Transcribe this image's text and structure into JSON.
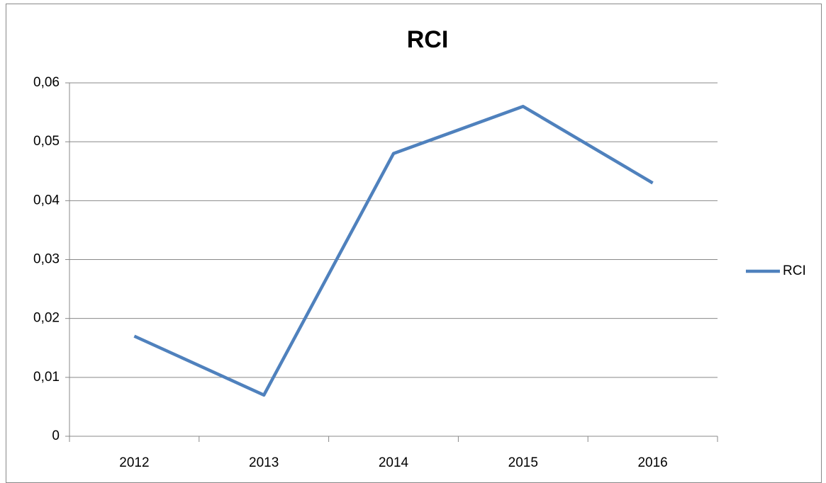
{
  "chart_data": {
    "type": "line",
    "title": "RCI",
    "categories": [
      "2012",
      "2013",
      "2014",
      "2015",
      "2016"
    ],
    "series": [
      {
        "name": "RCI",
        "color": "#4f81bd",
        "values": [
          0.017,
          0.007,
          0.048,
          0.056,
          0.043
        ]
      }
    ],
    "ylim": [
      0,
      0.06
    ],
    "yticks": [
      0,
      {
        "value": 0.01,
        "label": "0,01"
      },
      {
        "value": 0.02,
        "label": "0,02"
      },
      {
        "value": 0.03,
        "label": "0,03"
      },
      {
        "value": 0.04,
        "label": "0,04"
      },
      {
        "value": 0.05,
        "label": "0,05"
      },
      {
        "value": 0.06,
        "label": "0,06"
      }
    ],
    "grid": true,
    "legend": "right"
  }
}
